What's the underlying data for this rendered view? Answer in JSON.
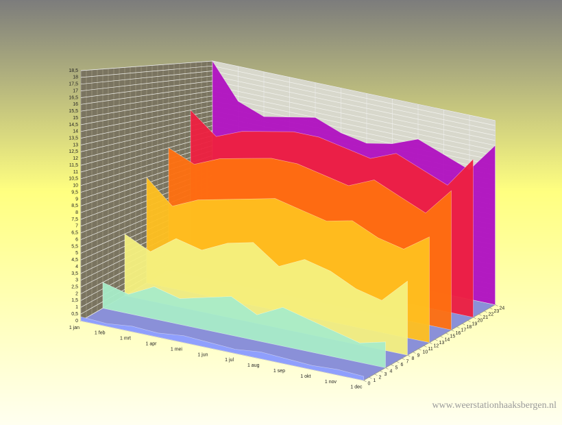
{
  "chart_data": {
    "type": "surface3d",
    "categories": [
      "1 jan",
      "1 feb",
      "1 mrt",
      "1 apr",
      "1 mei",
      "1 jun",
      "1 jul",
      "1 aug",
      "1 sep",
      "1 okt",
      "1 nov",
      "1 dec"
    ],
    "rows": [
      {
        "z": 0,
        "color": "#8fa0ff",
        "values": [
          0.3,
          0.2,
          0.4,
          0.3,
          0.5,
          0.4,
          0.3,
          0.5,
          0.4,
          0.3,
          0.4,
          0.3
        ]
      },
      {
        "z": 4,
        "color": "#a8ecc8",
        "values": [
          2,
          1.5,
          2.5,
          2,
          2.5,
          3,
          2,
          3,
          2.5,
          2,
          1.5,
          2
        ]
      },
      {
        "z": 8,
        "color": "#f4f080",
        "values": [
          5,
          4,
          5.5,
          5,
          6,
          6.5,
          5,
          6,
          5.5,
          4.5,
          4,
          6
        ]
      },
      {
        "z": 12,
        "color": "#ffc020",
        "values": [
          9,
          7,
          8,
          8.5,
          9,
          9.5,
          9,
          8.5,
          9,
          8,
          7.5,
          9
        ]
      },
      {
        "z": 16,
        "color": "#ff7010",
        "values": [
          11,
          10,
          11,
          11.5,
          12,
          12,
          11.5,
          11,
          12,
          11,
          10,
          12.5
        ]
      },
      {
        "z": 20,
        "color": "#ee2040",
        "values": [
          14,
          12,
          13,
          13.5,
          14,
          14,
          13.5,
          13,
          14,
          13,
          12,
          15
        ]
      },
      {
        "z": 24,
        "color": "#b010c0",
        "values": [
          18.5,
          15,
          14,
          14.5,
          15,
          14,
          13.5,
          14,
          15,
          14,
          13,
          16
        ]
      }
    ],
    "ylim": [
      0,
      18.5
    ],
    "yticks": [
      0,
      {
        "value": 0.5,
        "label": "0,5"
      },
      1,
      {
        "value": 1.5,
        "label": "1,5"
      },
      2,
      {
        "value": 2.5,
        "label": "2,5"
      },
      3,
      {
        "value": 3.5,
        "label": "3,5"
      },
      4,
      {
        "value": 4.5,
        "label": "4,5"
      },
      5,
      {
        "value": 5.5,
        "label": "5,5"
      },
      6,
      {
        "value": 6.5,
        "label": "6,5"
      },
      7,
      {
        "value": 7.5,
        "label": "7,5"
      },
      8,
      {
        "value": 8.5,
        "label": "8,5"
      },
      9,
      {
        "value": 9.5,
        "label": "9,5"
      },
      10,
      {
        "value": 10.5,
        "label": "10,5"
      },
      11,
      {
        "value": 11.5,
        "label": "11,5"
      },
      12,
      {
        "value": 12.5,
        "label": "12,5"
      },
      13,
      {
        "value": 13.5,
        "label": "13,5"
      },
      14,
      {
        "value": 14.5,
        "label": "14,5"
      },
      15,
      {
        "value": 15.5,
        "label": "15,5"
      },
      16,
      {
        "value": 16.5,
        "label": "16,5"
      },
      17,
      {
        "value": 17.5,
        "label": "17,5"
      },
      18,
      {
        "value": 18.5,
        "label": "18,5"
      }
    ],
    "zlim": [
      0,
      24
    ],
    "zticks": [
      0,
      1,
      2,
      3,
      4,
      5,
      6,
      7,
      8,
      9,
      10,
      11,
      12,
      13,
      14,
      15,
      16,
      17,
      18,
      19,
      20,
      21,
      22,
      23,
      24
    ],
    "grid": true,
    "watermark": "www.weerstationhaaksbergen.nl"
  }
}
